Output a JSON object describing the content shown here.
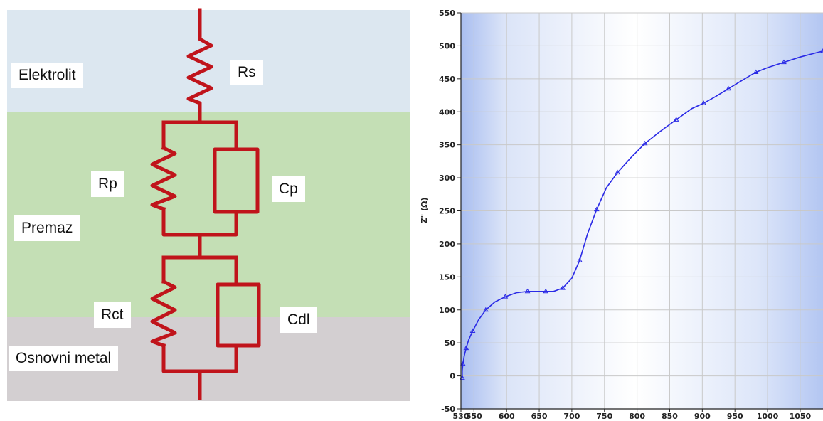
{
  "circuit": {
    "layers": [
      {
        "name": "Elektrolit",
        "color": "#dce7f0"
      },
      {
        "name": "Premaz",
        "color": "#c4dfb5"
      },
      {
        "name": "Osnovni metal",
        "color": "#d3cfd1"
      }
    ],
    "components": [
      "Rs",
      "Rp",
      "Cp",
      "Rct",
      "Cdl"
    ],
    "wire_color": "#c0141b"
  },
  "chart_data": {
    "type": "line",
    "title": "",
    "xlabel": "",
    "ylabel": "Z\" (Ω)",
    "xlim": [
      530,
      1085
    ],
    "ylim": [
      -50,
      550
    ],
    "xticks": [
      {
        "value": 530,
        "label": "530"
      },
      {
        "value": 550,
        "label": "550"
      },
      {
        "value": 600,
        "label": "600"
      },
      {
        "value": 650,
        "label": "650"
      },
      {
        "value": 700,
        "label": "700"
      },
      {
        "value": 750,
        "label": "750"
      },
      {
        "value": 800,
        "label": "800"
      },
      {
        "value": 850,
        "label": "850"
      },
      {
        "value": 900,
        "label": "900"
      },
      {
        "value": 950,
        "label": "950"
      },
      {
        "value": 1000,
        "label": "1000"
      },
      {
        "value": 1050,
        "label": "1050"
      }
    ],
    "yticks": [
      -50,
      0,
      50,
      100,
      150,
      200,
      250,
      300,
      350,
      400,
      450,
      500,
      550
    ],
    "grid": true,
    "series": [
      {
        "color": "#2a2ae6",
        "x": [
          532,
          532,
          533,
          535,
          538,
          542,
          548,
          557,
          568,
          582,
          598,
          615,
          632,
          648,
          660,
          672,
          686,
          700,
          712,
          724,
          738,
          753,
          770,
          790,
          812,
          835,
          860,
          884,
          902,
          920,
          940,
          960,
          982,
          1000,
          1025,
          1050,
          1085
        ],
        "y": [
          -3,
          8,
          18,
          30,
          42,
          55,
          68,
          85,
          100,
          112,
          120,
          126,
          128,
          128,
          128,
          128,
          133,
          148,
          175,
          215,
          252,
          285,
          308,
          330,
          352,
          370,
          388,
          405,
          413,
          423,
          435,
          447,
          460,
          467,
          475,
          483,
          492
        ]
      }
    ]
  }
}
